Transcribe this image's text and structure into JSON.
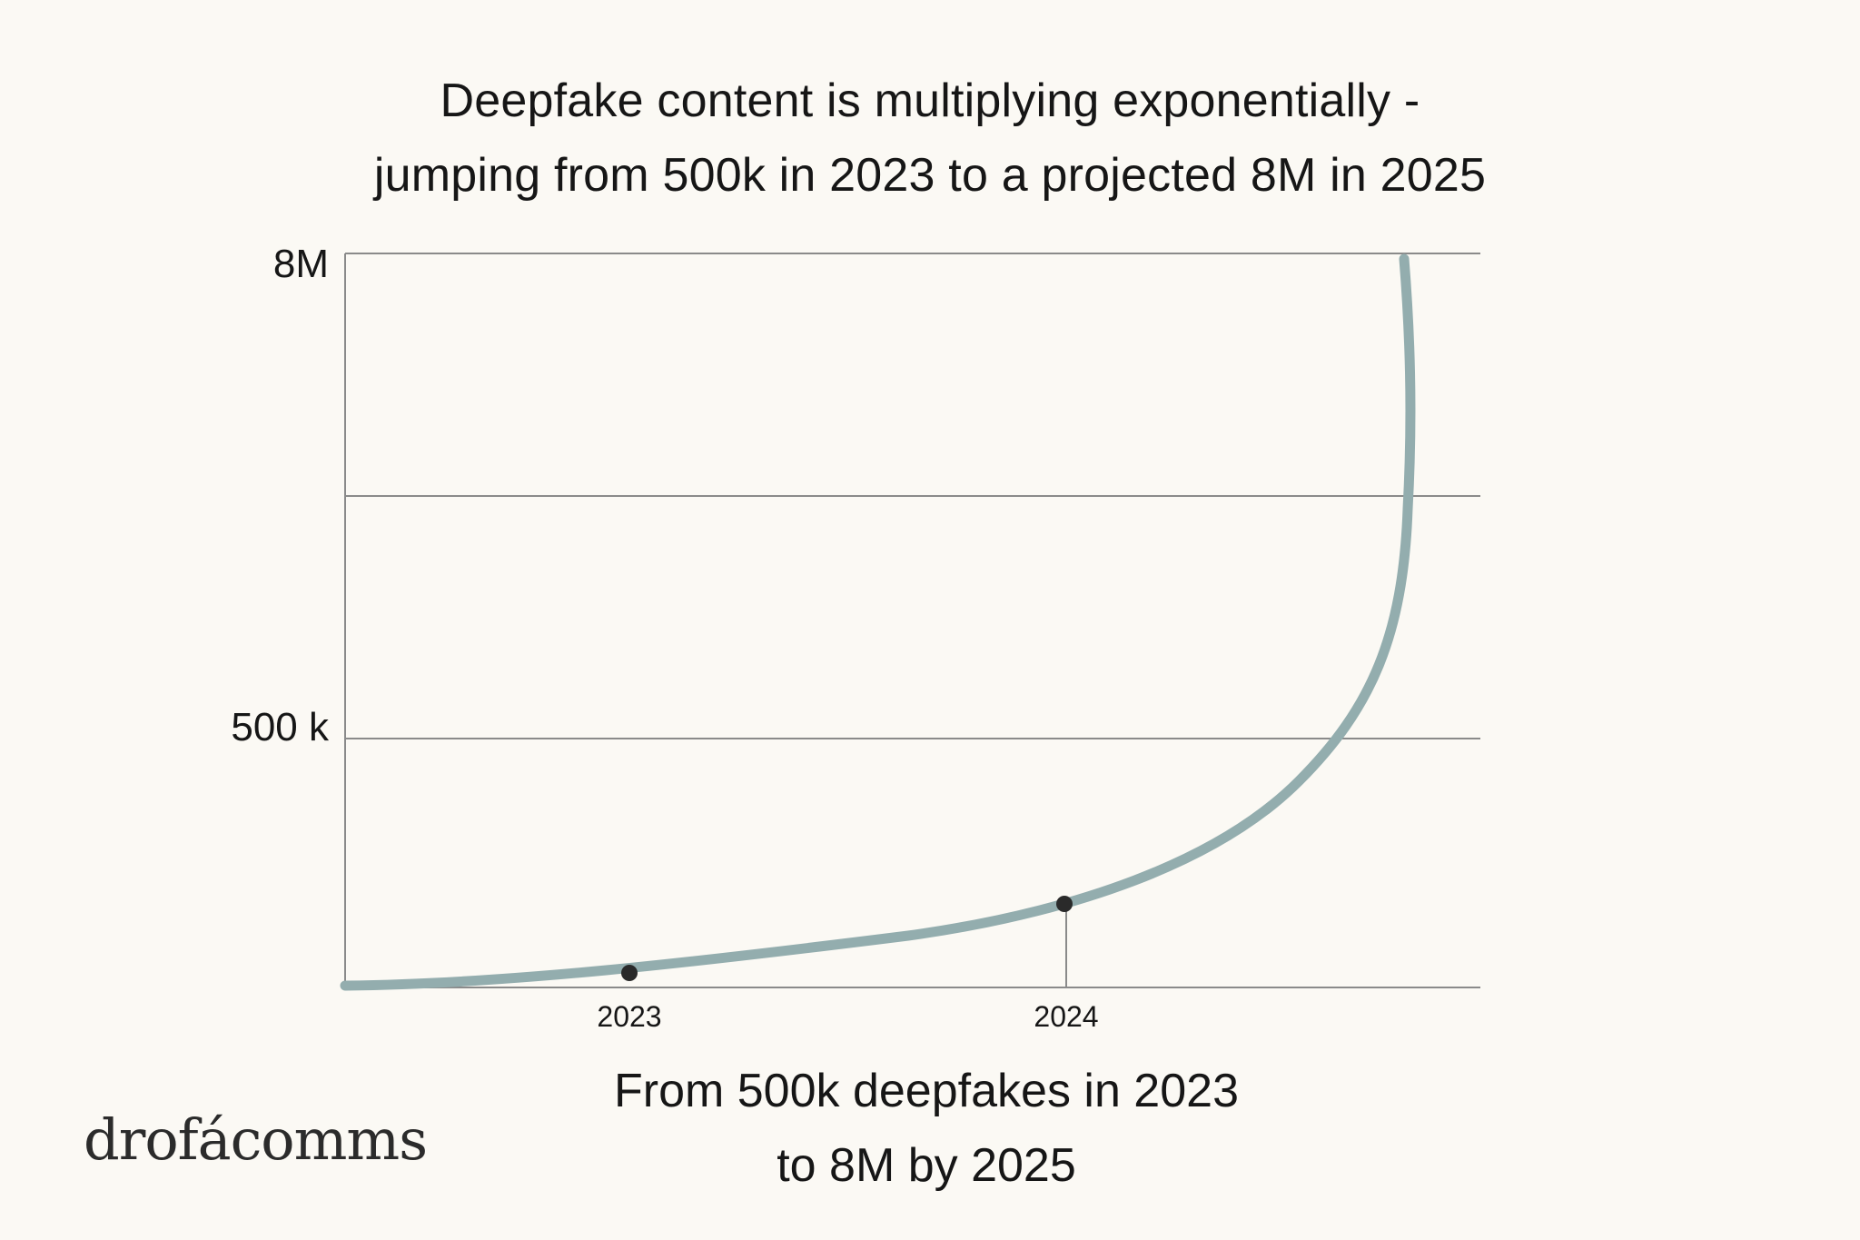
{
  "title_lines": [
    "Deepfake content is multiplying exponentially -",
    "jumping from 500k in 2023 to a projected 8M in 2025"
  ],
  "subtitle_lines": [
    "From 500k deepfakes in 2023",
    "to 8M by 2025"
  ],
  "logo": {
    "part1": "drofá",
    "part2": "comms"
  },
  "colors": {
    "background": "#fbf9f4",
    "curve": "#93adae",
    "grid": "#8a8a8a",
    "marker": "#2a2a2a",
    "text": "#161616"
  },
  "chart_data": {
    "type": "line",
    "title": "Deepfake content is multiplying exponentially - jumping from 500k in 2023 to a projected 8M in 2025",
    "xlabel": "",
    "ylabel": "",
    "x_ticks": [
      "2023",
      "2024"
    ],
    "y_ticks": [
      "500 k",
      "8M"
    ],
    "grid": true,
    "legend": "none",
    "series": [
      {
        "values_description": "exponential growth curve",
        "markers": [
          {
            "x": "2023",
            "label": "2023"
          },
          {
            "x": "2024",
            "label": "2024"
          }
        ]
      }
    ]
  }
}
